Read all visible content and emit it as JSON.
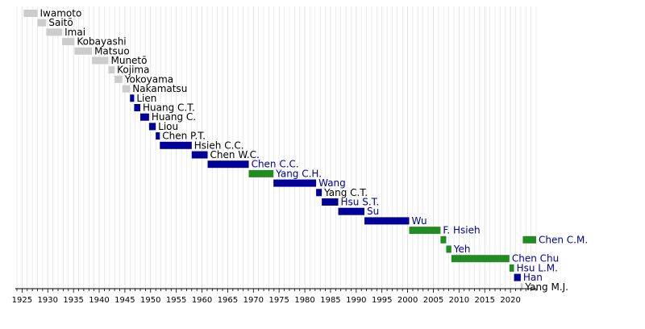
{
  "chart_data": {
    "type": "bar",
    "title": "",
    "xlabel": "",
    "ylabel": "",
    "xlim": [
      1924,
      2025
    ],
    "x_ticks": [
      1925,
      1930,
      1935,
      1940,
      1945,
      1950,
      1955,
      1960,
      1965,
      1970,
      1975,
      1980,
      1985,
      1990,
      1995,
      2000,
      2005,
      2010,
      2015,
      2020
    ],
    "x_tick_labels": [
      "1925",
      "1930",
      "1935",
      "1940",
      "1945",
      "1950",
      "1955",
      "1960",
      "1965",
      "1970",
      "1975",
      "1980",
      "1985",
      "1990",
      "1995",
      "2000",
      "2005",
      "2010",
      "2015",
      "2020"
    ],
    "grid": "vertical, yearly",
    "legend": "none",
    "colors": {
      "gray": "#cccccc",
      "blue": "#000099",
      "green": "#228b22",
      "grid": "#e0e0e0",
      "axis": "#000000"
    },
    "bars": [
      {
        "label": "Iwamoto",
        "start": 1925.3,
        "end": 1928.0,
        "color": "gray",
        "label_color": "#000000"
      },
      {
        "label": "Saitō",
        "start": 1928.0,
        "end": 1929.7,
        "color": "gray",
        "label_color": "#000000"
      },
      {
        "label": "Imai",
        "start": 1929.7,
        "end": 1932.8,
        "color": "gray",
        "label_color": "#000000"
      },
      {
        "label": "Kobayashi",
        "start": 1932.8,
        "end": 1935.2,
        "color": "gray",
        "label_color": "#000000"
      },
      {
        "label": "Matsuo",
        "start": 1935.2,
        "end": 1938.6,
        "color": "gray",
        "label_color": "#000000"
      },
      {
        "label": "Munetō",
        "start": 1938.6,
        "end": 1941.8,
        "color": "gray",
        "label_color": "#000000"
      },
      {
        "label": "Kojima",
        "start": 1941.8,
        "end": 1943.0,
        "color": "gray",
        "label_color": "#000000"
      },
      {
        "label": "Yokoyama",
        "start": 1943.0,
        "end": 1944.5,
        "color": "gray",
        "label_color": "#000000"
      },
      {
        "label": "Nakamatsu",
        "start": 1944.5,
        "end": 1946.0,
        "color": "gray",
        "label_color": "#000000"
      },
      {
        "label": "Lien",
        "start": 1946.0,
        "end": 1946.8,
        "color": "blue",
        "label_color": "#000000"
      },
      {
        "label": "Huang C.T.",
        "start": 1946.8,
        "end": 1948.0,
        "color": "blue",
        "label_color": "#000000"
      },
      {
        "label": "Huang C.",
        "start": 1948.0,
        "end": 1949.7,
        "color": "blue",
        "label_color": "#000000"
      },
      {
        "label": "Liou",
        "start": 1949.7,
        "end": 1951.0,
        "color": "blue",
        "label_color": "#000000"
      },
      {
        "label": "Chen P.T.",
        "start": 1951.0,
        "end": 1951.8,
        "color": "blue",
        "label_color": "#000000"
      },
      {
        "label": "Hsieh C.C.",
        "start": 1951.8,
        "end": 1958.0,
        "color": "blue",
        "label_color": "#000000"
      },
      {
        "label": "Chen W.C.",
        "start": 1958.0,
        "end": 1961.1,
        "color": "blue",
        "label_color": "#000000"
      },
      {
        "label": "Chen C.C.",
        "start": 1961.1,
        "end": 1969.1,
        "color": "blue",
        "label_color": "#000099"
      },
      {
        "label": "Yang C.H.",
        "start": 1969.1,
        "end": 1973.9,
        "color": "green",
        "label_color": "#000099"
      },
      {
        "label": "Wang",
        "start": 1973.9,
        "end": 1982.2,
        "color": "blue",
        "label_color": "#000099"
      },
      {
        "label": "Yang C.T.",
        "start": 1982.2,
        "end": 1983.3,
        "color": "blue",
        "label_color": "#000000"
      },
      {
        "label": "Hsu S.T.",
        "start": 1983.3,
        "end": 1986.5,
        "color": "blue",
        "label_color": "#000099"
      },
      {
        "label": "Su",
        "start": 1986.5,
        "end": 1991.6,
        "color": "blue",
        "label_color": "#000099"
      },
      {
        "label": "Wu",
        "start": 1991.6,
        "end": 2000.3,
        "color": "blue",
        "label_color": "#000099"
      },
      {
        "label": "F. Hsieh",
        "start": 2000.3,
        "end": 2006.4,
        "color": "green",
        "label_color": "#000099"
      },
      {
        "label": "",
        "start": 2006.4,
        "end": 2007.5,
        "color": "green",
        "label_color": "#000099"
      },
      {
        "label": "Yeh",
        "start": 2007.5,
        "end": 2008.5,
        "color": "green",
        "label_color": "#000099"
      },
      {
        "label": "Chen Chu",
        "start": 2008.5,
        "end": 2019.8,
        "color": "green",
        "label_color": "#000099"
      },
      {
        "label": "Hsu L.M.",
        "start": 2019.8,
        "end": 2020.7,
        "color": "green",
        "label_color": "#000099"
      },
      {
        "label": "Han",
        "start": 2020.7,
        "end": 2022.0,
        "color": "blue",
        "label_color": "#000099"
      },
      {
        "label": "Yang M.J.",
        "start": 2022.0,
        "end": 2022.4,
        "color": "gray",
        "label_color": "#000000"
      },
      {
        "label": "Chen C.M.",
        "start": 2022.4,
        "end": 2025.0,
        "color": "green",
        "label_color": "#000099"
      }
    ]
  }
}
